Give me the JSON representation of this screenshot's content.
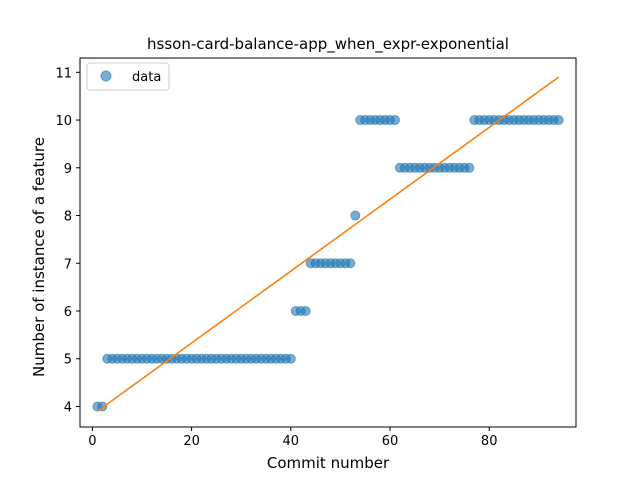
{
  "chart_data": {
    "type": "scatter",
    "title": "hsson-card-balance-app_when_expr-exponential",
    "xlabel": "Commit number",
    "ylabel": "Number of instance of a feature",
    "xlim": [
      -2.5,
      97.5
    ],
    "ylim": [
      3.57,
      11.3
    ],
    "xticks": [
      0,
      20,
      40,
      60,
      80
    ],
    "yticks": [
      4,
      5,
      6,
      7,
      8,
      9,
      10,
      11
    ],
    "grid": false,
    "legend": {
      "placement": "top-left",
      "entries": [
        "data"
      ]
    },
    "colors": {
      "points": "#1f77b4",
      "fit": "#ff7f0e"
    },
    "series": [
      {
        "name": "data",
        "kind": "scatter",
        "x": [
          1,
          2,
          3,
          4,
          5,
          6,
          7,
          8,
          9,
          10,
          11,
          12,
          13,
          14,
          15,
          16,
          17,
          18,
          19,
          20,
          21,
          22,
          23,
          24,
          25,
          26,
          27,
          28,
          29,
          30,
          31,
          32,
          33,
          34,
          35,
          36,
          37,
          38,
          39,
          40,
          41,
          42,
          43,
          44,
          45,
          46,
          47,
          48,
          49,
          50,
          51,
          52,
          53,
          54,
          55,
          56,
          57,
          58,
          59,
          60,
          61,
          62,
          63,
          64,
          65,
          66,
          67,
          68,
          69,
          70,
          71,
          72,
          73,
          74,
          75,
          76,
          77,
          78,
          79,
          80,
          81,
          82,
          83,
          84,
          85,
          86,
          87,
          88,
          89,
          90,
          91,
          92,
          93,
          94
        ],
        "y": [
          4,
          4,
          5,
          5,
          5,
          5,
          5,
          5,
          5,
          5,
          5,
          5,
          5,
          5,
          5,
          5,
          5,
          5,
          5,
          5,
          5,
          5,
          5,
          5,
          5,
          5,
          5,
          5,
          5,
          5,
          5,
          5,
          5,
          5,
          5,
          5,
          5,
          5,
          5,
          5,
          6,
          6,
          6,
          7,
          7,
          7,
          7,
          7,
          7,
          7,
          7,
          7,
          8,
          10,
          10,
          10,
          10,
          10,
          10,
          10,
          10,
          9,
          9,
          9,
          9,
          9,
          9,
          9,
          9,
          9,
          9,
          9,
          9,
          9,
          9,
          9,
          10,
          10,
          10,
          10,
          10,
          10,
          10,
          10,
          10,
          10,
          10,
          10,
          10,
          10,
          10,
          10,
          10,
          10
        ]
      },
      {
        "kind": "line",
        "x": [
          1,
          94
        ],
        "y": [
          3.9,
          10.9
        ]
      }
    ]
  }
}
